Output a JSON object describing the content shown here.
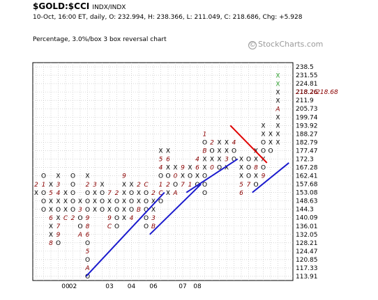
{
  "header": {
    "symbol": "$GOLD:$CCI",
    "exchange": "INDX/INDX",
    "info": "10-Oct, 16:00 ET, daily, O: 232.994, H: 238.366, L: 211.049, C: 218.686, Chg: +5.928",
    "subtitle": "Percentage, 3.0%/box 3 box reversal chart",
    "watermark": "StockCharts.com",
    "copyright_symbol": "©"
  },
  "colors": {
    "x_mark": "#000000",
    "o_mark": "#000000",
    "month_mark": "#8b0000",
    "latest_mark": "#2e9e2e",
    "support_line": "#1a1acd",
    "resistance_line": "#e00000",
    "last_price": "#8b0000",
    "grid": "#bdbdbd"
  },
  "chart_data": {
    "type": "point-and-figure",
    "box_size": "3.0%",
    "reversal": 3,
    "price_levels": [
      "238.5",
      "231.55",
      "224.81",
      "218.26",
      "211.9",
      "205.73",
      "199.74",
      "193.92",
      "188.27",
      "182.79",
      "177.47",
      "172.3",
      "167.28",
      "162.41",
      "157.68",
      "153.08",
      "148.63",
      "144.3",
      "140.09",
      "136.01",
      "132.05",
      "128.21",
      "124.47",
      "120.85",
      "117.33",
      "113.91"
    ],
    "last_price": {
      "value": 218.26,
      "label": "218.68",
      "prefix": "‹‹"
    },
    "year_labels": [
      {
        "label": "00",
        "col": 4
      },
      {
        "label": "02",
        "col": 5
      },
      {
        "label": "03",
        "col": 10
      },
      {
        "label": "04",
        "col": 13
      },
      {
        "label": "06",
        "col": 16
      },
      {
        "label": "07",
        "col": 20
      },
      {
        "label": "08",
        "col": 22
      }
    ],
    "columns": [
      {
        "col": 0,
        "type": "X",
        "from": 153.08,
        "to": 157.68,
        "marks": [
          {
            "price": 157.68,
            "label": "2"
          }
        ]
      },
      {
        "col": 1,
        "type": "O",
        "from": 144.3,
        "to": 162.41,
        "marks": [
          {
            "price": 157.68,
            "label": "1"
          }
        ]
      },
      {
        "col": 2,
        "type": "X",
        "from": 128.21,
        "to": 157.68,
        "marks": [
          {
            "price": 153.08,
            "label": "5"
          },
          {
            "price": 140.09,
            "label": "6"
          },
          {
            "price": 128.21,
            "label": "8"
          }
        ]
      },
      {
        "col": 3,
        "type": "O",
        "from": 128.21,
        "to": 162.41,
        "marks": [
          {
            "price": 162.41,
            "label": "X"
          },
          {
            "price": 157.68,
            "label": "3"
          },
          {
            "price": 153.08,
            "label": "4"
          },
          {
            "price": 148.63,
            "label": "X"
          },
          {
            "price": 140.09,
            "label": "X"
          },
          {
            "price": 136.01,
            "label": "7"
          },
          {
            "price": 132.05,
            "label": "9"
          }
        ]
      },
      {
        "col": 4,
        "type": "X",
        "from": 140.09,
        "to": 153.08,
        "marks": [
          {
            "price": 140.09,
            "label": "C"
          }
        ]
      },
      {
        "col": 5,
        "type": "O",
        "from": 140.09,
        "to": 162.41,
        "marks": [
          {
            "price": 157.68,
            "label": "O"
          },
          {
            "price": 153.08,
            "label": "O"
          },
          {
            "price": 148.63,
            "label": "O"
          },
          {
            "price": 144.3,
            "label": "O"
          },
          {
            "price": 140.09,
            "label": "2"
          }
        ]
      },
      {
        "col": 6,
        "type": "X",
        "from": 132.05,
        "to": 148.63,
        "marks": [
          {
            "price": 144.3,
            "label": "3"
          },
          {
            "price": 140.09,
            "label": "O"
          },
          {
            "price": 136.01,
            "label": "O"
          },
          {
            "price": 132.05,
            "label": "A"
          }
        ]
      },
      {
        "col": 7,
        "type": "O",
        "from": 113.91,
        "to": 162.41,
        "marks": [
          {
            "price": 162.41,
            "label": "X"
          },
          {
            "price": 157.68,
            "label": "2"
          },
          {
            "price": 140.09,
            "label": "9"
          },
          {
            "price": 136.01,
            "label": "8"
          },
          {
            "price": 132.05,
            "label": "6"
          },
          {
            "price": 124.47,
            "label": "5"
          },
          {
            "price": 117.33,
            "label": "A"
          }
        ]
      },
      {
        "col": 8,
        "type": "X",
        "from": 144.3,
        "to": 157.68,
        "marks": [
          {
            "price": 157.68,
            "label": "3"
          }
        ]
      },
      {
        "col": 9,
        "type": "O",
        "from": 144.3,
        "to": 157.68,
        "marks": [
          {
            "price": 157.68,
            "label": "X"
          }
        ]
      },
      {
        "col": 10,
        "type": "X",
        "from": 136.01,
        "to": 153.08,
        "marks": [
          {
            "price": 153.08,
            "label": "7"
          },
          {
            "price": 140.09,
            "label": "9"
          },
          {
            "price": 136.01,
            "label": "C"
          }
        ]
      },
      {
        "col": 11,
        "type": "O",
        "from": 136.01,
        "to": 153.08,
        "marks": [
          {
            "price": 153.08,
            "label": "2"
          },
          {
            "price": 140.09,
            "label": "O"
          }
        ]
      },
      {
        "col": 12,
        "type": "X",
        "from": 140.09,
        "to": 162.41,
        "marks": [
          {
            "price": 162.41,
            "label": "9"
          },
          {
            "price": 148.63,
            "label": "X"
          }
        ]
      },
      {
        "col": 13,
        "type": "O",
        "from": 140.09,
        "to": 157.68,
        "marks": [
          {
            "price": 157.68,
            "label": "X"
          },
          {
            "price": 144.3,
            "label": "O"
          },
          {
            "price": 140.09,
            "label": "4"
          }
        ]
      },
      {
        "col": 14,
        "type": "X",
        "from": 144.3,
        "to": 157.68,
        "marks": [
          {
            "price": 157.68,
            "label": "2"
          },
          {
            "price": 144.3,
            "label": "B"
          }
        ]
      },
      {
        "col": 15,
        "type": "O",
        "from": 136.01,
        "to": 157.68,
        "marks": [
          {
            "price": 157.68,
            "label": "C"
          },
          {
            "price": 140.09,
            "label": "O"
          },
          {
            "price": 136.01,
            "label": "O"
          }
        ]
      },
      {
        "col": 16,
        "type": "X",
        "from": 136.01,
        "to": 153.08,
        "marks": [
          {
            "price": 153.08,
            "label": "2"
          },
          {
            "price": 140.09,
            "label": "3"
          },
          {
            "price": 136.01,
            "label": "B"
          }
        ]
      },
      {
        "col": 17,
        "type": "O",
        "from": 148.63,
        "to": 177.47,
        "marks": [
          {
            "price": 177.47,
            "label": "X"
          },
          {
            "price": 172.3,
            "label": "5"
          },
          {
            "price": 167.28,
            "label": "4"
          },
          {
            "price": 162.41,
            "label": "O"
          },
          {
            "price": 157.68,
            "label": "1"
          },
          {
            "price": 153.08,
            "label": "C"
          }
        ]
      },
      {
        "col": 18,
        "type": "X",
        "from": 153.08,
        "to": 177.47,
        "marks": [
          {
            "price": 172.3,
            "label": "6"
          },
          {
            "price": 162.41,
            "label": "O"
          },
          {
            "price": 157.68,
            "label": "2"
          }
        ]
      },
      {
        "col": 19,
        "type": "O",
        "from": 153.08,
        "to": 167.28,
        "marks": [
          {
            "price": 167.28,
            "label": "X"
          },
          {
            "price": 162.41,
            "label": "0"
          },
          {
            "price": 153.08,
            "label": "A"
          }
        ]
      },
      {
        "col": 20,
        "type": "X",
        "from": 157.68,
        "to": 167.28,
        "marks": [
          {
            "price": 167.28,
            "label": "9"
          },
          {
            "price": 157.68,
            "label": "7"
          }
        ]
      },
      {
        "col": 21,
        "type": "O",
        "from": 157.68,
        "to": 167.28,
        "marks": [
          {
            "price": 167.28,
            "label": "X"
          },
          {
            "price": 162.41,
            "label": "O"
          },
          {
            "price": 157.68,
            "label": "1"
          }
        ]
      },
      {
        "col": 22,
        "type": "X",
        "from": 157.68,
        "to": 172.3,
        "marks": [
          {
            "price": 172.3,
            "label": "4"
          },
          {
            "price": 167.28,
            "label": "6"
          },
          {
            "price": 157.68,
            "label": "O"
          }
        ]
      },
      {
        "col": 23,
        "type": "O",
        "from": 153.08,
        "to": 188.27,
        "marks": [
          {
            "price": 188.27,
            "label": "1"
          },
          {
            "price": 177.47,
            "label": "B"
          },
          {
            "price": 172.3,
            "label": "X"
          },
          {
            "price": 167.28,
            "label": "X"
          },
          {
            "price": 162.41,
            "label": "O"
          },
          {
            "price": 157.68,
            "label": "O"
          }
        ]
      },
      {
        "col": 24,
        "type": "X",
        "from": 167.28,
        "to": 182.79,
        "marks": [
          {
            "price": 182.79,
            "label": "2"
          },
          {
            "price": 177.47,
            "label": "O"
          },
          {
            "price": 167.28,
            "label": "0"
          }
        ]
      },
      {
        "col": 25,
        "type": "O",
        "from": 167.28,
        "to": 182.79,
        "marks": [
          {
            "price": 182.79,
            "label": "X"
          },
          {
            "price": 177.47,
            "label": "X"
          },
          {
            "price": 172.3,
            "label": "X"
          },
          {
            "price": 167.28,
            "label": "O"
          }
        ]
      },
      {
        "col": 26,
        "type": "X",
        "from": 167.28,
        "to": 182.79,
        "marks": [
          {
            "price": 182.79,
            "label": "X"
          },
          {
            "price": 177.47,
            "label": "X"
          },
          {
            "price": 172.3,
            "label": "3"
          }
        ]
      },
      {
        "col": 27,
        "type": "O",
        "from": 172.3,
        "to": 182.79,
        "marks": [
          {
            "price": 182.79,
            "label": "4"
          },
          {
            "price": 177.47,
            "label": "O"
          },
          {
            "price": 172.3,
            "label": "O"
          }
        ]
      },
      {
        "col": 28,
        "type": "X",
        "from": 153.08,
        "to": 172.3,
        "marks": [
          {
            "price": 167.28,
            "label": "X"
          },
          {
            "price": 162.41,
            "label": "X"
          },
          {
            "price": 157.68,
            "label": "5"
          },
          {
            "price": 153.08,
            "label": "6"
          }
        ]
      },
      {
        "col": 29,
        "type": "O",
        "from": 157.68,
        "to": 172.3,
        "marks": [
          {
            "price": 167.28,
            "label": "O"
          },
          {
            "price": 157.68,
            "label": "7"
          }
        ]
      },
      {
        "col": 30,
        "type": "X",
        "from": 157.68,
        "to": 177.47,
        "marks": [
          {
            "price": 167.28,
            "label": "8"
          },
          {
            "price": 157.68,
            "label": "O"
          }
        ]
      },
      {
        "col": 31,
        "type": "O",
        "from": 162.41,
        "to": 193.92,
        "marks": [
          {
            "price": 193.92,
            "label": "X"
          },
          {
            "price": 188.27,
            "label": "X"
          },
          {
            "price": 182.79,
            "label": "O"
          },
          {
            "price": 177.47,
            "label": "O"
          },
          {
            "price": 172.3,
            "label": "X"
          },
          {
            "price": 167.28,
            "label": "O"
          },
          {
            "price": 162.41,
            "label": "9"
          }
        ]
      },
      {
        "col": 32,
        "type": "X",
        "from": 177.47,
        "to": 188.27,
        "marks": [
          {
            "price": 188.27,
            "label": "X"
          },
          {
            "price": 182.79,
            "label": "X"
          },
          {
            "price": 177.47,
            "label": "O"
          }
        ]
      },
      {
        "col": 33,
        "type": "X",
        "from": 182.79,
        "to": 231.55,
        "marks": [
          {
            "price": 231.55,
            "label": "X"
          },
          {
            "price": 224.81,
            "label": "X"
          },
          {
            "price": 218.26,
            "label": "X"
          },
          {
            "price": 205.73,
            "label": "A"
          },
          {
            "price": 182.79,
            "label": "X"
          }
        ]
      }
    ],
    "trend_lines": [
      {
        "type": "support",
        "from": {
          "col": 6.8,
          "price": 113.91
        },
        "to": {
          "col": 17.5,
          "price": 153.08
        }
      },
      {
        "type": "support",
        "from": {
          "col": 15.5,
          "price": 132.05
        },
        "to": {
          "col": 22.5,
          "price": 157.68
        }
      },
      {
        "type": "support",
        "from": {
          "col": 20.5,
          "price": 153.08
        },
        "to": {
          "col": 27.5,
          "price": 172.3
        }
      },
      {
        "type": "support",
        "from": {
          "col": 29.5,
          "price": 153.08
        },
        "to": {
          "col": 34.5,
          "price": 170.0
        }
      },
      {
        "type": "resistance",
        "from": {
          "col": 26.5,
          "price": 193.92
        },
        "to": {
          "col": 31.5,
          "price": 170.0
        }
      }
    ]
  }
}
